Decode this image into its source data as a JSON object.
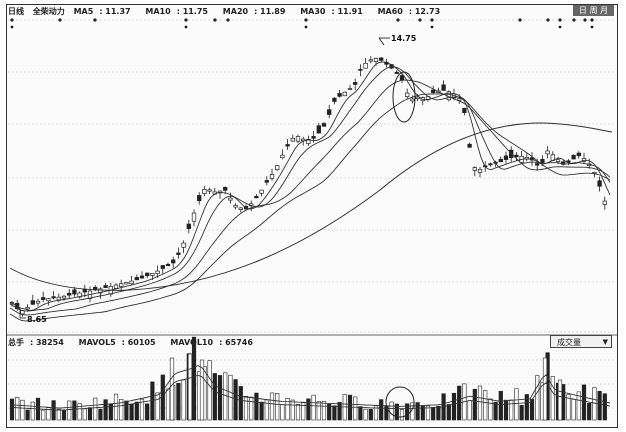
{
  "header": {
    "period": "日线",
    "stock_name": "全柴动力",
    "ma_values": [
      {
        "label": "MA5",
        "value": "11.37"
      },
      {
        "label": "MA10",
        "value": "11.75"
      },
      {
        "label": "MA20",
        "value": "11.89"
      },
      {
        "label": "MA30",
        "value": "11.91"
      },
      {
        "label": "MA60",
        "value": "12.73"
      }
    ],
    "badge": "日 周 月"
  },
  "volume_header": {
    "total_label": "总手",
    "total_value": "38254",
    "mavol5_label": "MAVOL5",
    "mavol5_value": "60105",
    "mavol10_label": "MAVOL10",
    "mavol10_value": "65746",
    "indicator": "成交量"
  },
  "chart_data": {
    "type": "candlestick",
    "high_marker": "14.75",
    "low_marker": "8.65",
    "grid": true,
    "series": [
      {
        "name": "MA5"
      },
      {
        "name": "MA10"
      },
      {
        "name": "MA20"
      },
      {
        "name": "MA30"
      },
      {
        "name": "MA60"
      }
    ]
  },
  "colors": {
    "candle": "#222222",
    "grid": "#bbbbbb",
    "ma": "#333333"
  },
  "icons": {
    "dropdown": "▼"
  }
}
